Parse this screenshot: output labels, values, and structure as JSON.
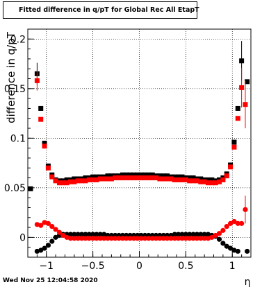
{
  "title": "Fitted difference in q/pT for Global Rec All EtapT",
  "timestamp": "Wed Nov 25 12:04:58 2020",
  "chart_data": {
    "type": "scatter",
    "title": "Fitted difference in q/pT for Global Rec All EtapT",
    "xlabel": "η",
    "ylabel": "difference in q/pT",
    "xlim": [
      -1.2,
      1.2
    ],
    "ylim": [
      -0.02,
      0.21
    ],
    "grid": true,
    "x_ticks": [
      {
        "v": -1,
        "label": "−1"
      },
      {
        "v": -0.5,
        "label": "−0.5"
      },
      {
        "v": 0,
        "label": "0"
      },
      {
        "v": 0.5,
        "label": "0.5"
      },
      {
        "v": 1,
        "label": "1"
      }
    ],
    "y_ticks": [
      {
        "v": 0,
        "label": "0"
      },
      {
        "v": 0.05,
        "label": "0.05"
      },
      {
        "v": 0.1,
        "label": "0.1"
      },
      {
        "v": 0.15,
        "label": "0.15"
      },
      {
        "v": 0.2,
        "label": "0.2"
      }
    ],
    "series": [
      {
        "color": "#000000",
        "points": [
          {
            "x": -1.17,
            "y": 0.049
          },
          {
            "x": -1.1,
            "y": 0.165,
            "err": 0.011
          },
          {
            "x": -1.06,
            "y": 0.13
          },
          {
            "x": -1.02,
            "y": 0.095
          },
          {
            "x": -0.98,
            "y": 0.072
          },
          {
            "x": -0.94,
            "y": 0.063
          },
          {
            "x": -0.9,
            "y": 0.058
          },
          {
            "x": -0.86,
            "y": 0.057
          },
          {
            "x": -0.82,
            "y": 0.057
          },
          {
            "x": -0.78,
            "y": 0.058
          },
          {
            "x": -0.74,
            "y": 0.058
          },
          {
            "x": -0.7,
            "y": 0.059
          },
          {
            "x": -0.66,
            "y": 0.059
          },
          {
            "x": -0.62,
            "y": 0.059
          },
          {
            "x": -0.58,
            "y": 0.06
          },
          {
            "x": -0.54,
            "y": 0.06
          },
          {
            "x": -0.5,
            "y": 0.061
          },
          {
            "x": -0.46,
            "y": 0.061
          },
          {
            "x": -0.42,
            "y": 0.061
          },
          {
            "x": -0.38,
            "y": 0.061
          },
          {
            "x": -0.34,
            "y": 0.062
          },
          {
            "x": -0.3,
            "y": 0.062
          },
          {
            "x": -0.26,
            "y": 0.062
          },
          {
            "x": -0.22,
            "y": 0.062
          },
          {
            "x": -0.18,
            "y": 0.063
          },
          {
            "x": -0.14,
            "y": 0.063
          },
          {
            "x": -0.1,
            "y": 0.063
          },
          {
            "x": -0.06,
            "y": 0.063
          },
          {
            "x": -0.02,
            "y": 0.063
          },
          {
            "x": 0.02,
            "y": 0.063
          },
          {
            "x": 0.06,
            "y": 0.063
          },
          {
            "x": 0.1,
            "y": 0.063
          },
          {
            "x": 0.14,
            "y": 0.063
          },
          {
            "x": 0.18,
            "y": 0.062
          },
          {
            "x": 0.22,
            "y": 0.062
          },
          {
            "x": 0.26,
            "y": 0.062
          },
          {
            "x": 0.3,
            "y": 0.062
          },
          {
            "x": 0.34,
            "y": 0.061
          },
          {
            "x": 0.38,
            "y": 0.061
          },
          {
            "x": 0.42,
            "y": 0.061
          },
          {
            "x": 0.46,
            "y": 0.061
          },
          {
            "x": 0.5,
            "y": 0.06
          },
          {
            "x": 0.54,
            "y": 0.06
          },
          {
            "x": 0.58,
            "y": 0.06
          },
          {
            "x": 0.62,
            "y": 0.059
          },
          {
            "x": 0.66,
            "y": 0.059
          },
          {
            "x": 0.7,
            "y": 0.058
          },
          {
            "x": 0.74,
            "y": 0.058
          },
          {
            "x": 0.78,
            "y": 0.058
          },
          {
            "x": 0.82,
            "y": 0.057
          },
          {
            "x": 0.86,
            "y": 0.058
          },
          {
            "x": 0.9,
            "y": 0.06
          },
          {
            "x": 0.94,
            "y": 0.064
          },
          {
            "x": 0.98,
            "y": 0.073
          },
          {
            "x": 1.02,
            "y": 0.096
          },
          {
            "x": 1.06,
            "y": 0.13
          },
          {
            "x": 1.1,
            "y": 0.178,
            "err": 0.02
          },
          {
            "x": 1.16,
            "y": 0.157
          }
        ]
      },
      {
        "color": "#ff0000",
        "points": [
          {
            "x": -1.1,
            "y": 0.158,
            "err": 0.01
          },
          {
            "x": -1.06,
            "y": 0.119
          },
          {
            "x": -1.02,
            "y": 0.092
          },
          {
            "x": -0.98,
            "y": 0.07
          },
          {
            "x": -0.94,
            "y": 0.061
          },
          {
            "x": -0.9,
            "y": 0.057
          },
          {
            "x": -0.86,
            "y": 0.055
          },
          {
            "x": -0.82,
            "y": 0.055
          },
          {
            "x": -0.78,
            "y": 0.055
          },
          {
            "x": -0.74,
            "y": 0.056
          },
          {
            "x": -0.7,
            "y": 0.056
          },
          {
            "x": -0.66,
            "y": 0.057
          },
          {
            "x": -0.62,
            "y": 0.057
          },
          {
            "x": -0.58,
            "y": 0.057
          },
          {
            "x": -0.54,
            "y": 0.058
          },
          {
            "x": -0.5,
            "y": 0.058
          },
          {
            "x": -0.46,
            "y": 0.058
          },
          {
            "x": -0.42,
            "y": 0.059
          },
          {
            "x": -0.38,
            "y": 0.059
          },
          {
            "x": -0.34,
            "y": 0.059
          },
          {
            "x": -0.3,
            "y": 0.059
          },
          {
            "x": -0.26,
            "y": 0.06
          },
          {
            "x": -0.22,
            "y": 0.06
          },
          {
            "x": -0.18,
            "y": 0.06
          },
          {
            "x": -0.14,
            "y": 0.06
          },
          {
            "x": -0.1,
            "y": 0.06
          },
          {
            "x": -0.06,
            "y": 0.06
          },
          {
            "x": -0.02,
            "y": 0.06
          },
          {
            "x": 0.02,
            "y": 0.06
          },
          {
            "x": 0.06,
            "y": 0.06
          },
          {
            "x": 0.1,
            "y": 0.06
          },
          {
            "x": 0.14,
            "y": 0.06
          },
          {
            "x": 0.18,
            "y": 0.06
          },
          {
            "x": 0.22,
            "y": 0.059
          },
          {
            "x": 0.26,
            "y": 0.059
          },
          {
            "x": 0.3,
            "y": 0.059
          },
          {
            "x": 0.34,
            "y": 0.059
          },
          {
            "x": 0.38,
            "y": 0.058
          },
          {
            "x": 0.42,
            "y": 0.058
          },
          {
            "x": 0.46,
            "y": 0.058
          },
          {
            "x": 0.5,
            "y": 0.058
          },
          {
            "x": 0.54,
            "y": 0.057
          },
          {
            "x": 0.58,
            "y": 0.057
          },
          {
            "x": 0.62,
            "y": 0.057
          },
          {
            "x": 0.66,
            "y": 0.056
          },
          {
            "x": 0.7,
            "y": 0.056
          },
          {
            "x": 0.74,
            "y": 0.055
          },
          {
            "x": 0.78,
            "y": 0.055
          },
          {
            "x": 0.82,
            "y": 0.055
          },
          {
            "x": 0.86,
            "y": 0.056
          },
          {
            "x": 0.9,
            "y": 0.058
          },
          {
            "x": 0.94,
            "y": 0.062
          },
          {
            "x": 0.98,
            "y": 0.071
          },
          {
            "x": 1.02,
            "y": 0.091
          },
          {
            "x": 1.06,
            "y": 0.12
          },
          {
            "x": 1.1,
            "y": 0.151,
            "err": 0.02
          },
          {
            "x": 1.14,
            "y": 0.134,
            "err": 0.024
          }
        ]
      },
      {
        "color": "#000000",
        "points": [
          {
            "x": -1.1,
            "y": -0.014
          },
          {
            "x": -1.06,
            "y": -0.013
          },
          {
            "x": -1.02,
            "y": -0.011
          },
          {
            "x": -0.98,
            "y": -0.008
          },
          {
            "x": -0.94,
            "y": -0.004
          },
          {
            "x": -0.9,
            "y": 0.0
          },
          {
            "x": -0.86,
            "y": 0.002
          },
          {
            "x": -0.82,
            "y": 0.003
          },
          {
            "x": -0.78,
            "y": 0.003
          },
          {
            "x": -0.74,
            "y": 0.003
          },
          {
            "x": -0.7,
            "y": 0.003
          },
          {
            "x": -0.66,
            "y": 0.003
          },
          {
            "x": -0.62,
            "y": 0.003
          },
          {
            "x": -0.58,
            "y": 0.003
          },
          {
            "x": -0.54,
            "y": 0.003
          },
          {
            "x": -0.5,
            "y": 0.003
          },
          {
            "x": -0.46,
            "y": 0.003
          },
          {
            "x": -0.42,
            "y": 0.003
          },
          {
            "x": -0.38,
            "y": 0.003
          },
          {
            "x": -0.34,
            "y": 0.002
          },
          {
            "x": -0.3,
            "y": 0.002
          },
          {
            "x": -0.26,
            "y": 0.002
          },
          {
            "x": -0.22,
            "y": 0.002
          },
          {
            "x": -0.18,
            "y": 0.002
          },
          {
            "x": -0.14,
            "y": 0.002
          },
          {
            "x": -0.1,
            "y": 0.002
          },
          {
            "x": -0.06,
            "y": 0.002
          },
          {
            "x": -0.02,
            "y": 0.002
          },
          {
            "x": 0.02,
            "y": 0.002
          },
          {
            "x": 0.06,
            "y": 0.002
          },
          {
            "x": 0.1,
            "y": 0.002
          },
          {
            "x": 0.14,
            "y": 0.002
          },
          {
            "x": 0.18,
            "y": 0.002
          },
          {
            "x": 0.22,
            "y": 0.002
          },
          {
            "x": 0.26,
            "y": 0.002
          },
          {
            "x": 0.3,
            "y": 0.002
          },
          {
            "x": 0.34,
            "y": 0.002
          },
          {
            "x": 0.38,
            "y": 0.003
          },
          {
            "x": 0.42,
            "y": 0.003
          },
          {
            "x": 0.46,
            "y": 0.003
          },
          {
            "x": 0.5,
            "y": 0.003
          },
          {
            "x": 0.54,
            "y": 0.003
          },
          {
            "x": 0.58,
            "y": 0.003
          },
          {
            "x": 0.62,
            "y": 0.003
          },
          {
            "x": 0.66,
            "y": 0.003
          },
          {
            "x": 0.7,
            "y": 0.003
          },
          {
            "x": 0.74,
            "y": 0.003
          },
          {
            "x": 0.78,
            "y": 0.002
          },
          {
            "x": 0.82,
            "y": 0.001
          },
          {
            "x": 0.86,
            "y": -0.002
          },
          {
            "x": 0.9,
            "y": -0.006
          },
          {
            "x": 0.94,
            "y": -0.009
          },
          {
            "x": 0.98,
            "y": -0.011
          },
          {
            "x": 1.02,
            "y": -0.013
          },
          {
            "x": 1.06,
            "y": -0.014
          },
          {
            "x": 1.16,
            "y": -0.014
          }
        ]
      },
      {
        "color": "#ff0000",
        "points": [
          {
            "x": -1.1,
            "y": 0.013
          },
          {
            "x": -1.06,
            "y": 0.012
          },
          {
            "x": -1.02,
            "y": 0.015
          },
          {
            "x": -0.98,
            "y": 0.014
          },
          {
            "x": -0.94,
            "y": 0.011
          },
          {
            "x": -0.9,
            "y": 0.008
          },
          {
            "x": -0.86,
            "y": 0.005
          },
          {
            "x": -0.82,
            "y": 0.002
          },
          {
            "x": -0.78,
            "y": 0.0
          },
          {
            "x": -0.74,
            "y": -0.001
          },
          {
            "x": -0.7,
            "y": -0.001
          },
          {
            "x": -0.66,
            "y": -0.001
          },
          {
            "x": -0.62,
            "y": -0.001
          },
          {
            "x": -0.58,
            "y": -0.001
          },
          {
            "x": -0.54,
            "y": -0.001
          },
          {
            "x": -0.5,
            "y": -0.001
          },
          {
            "x": -0.46,
            "y": -0.001
          },
          {
            "x": -0.42,
            "y": -0.001
          },
          {
            "x": -0.38,
            "y": -0.001
          },
          {
            "x": -0.34,
            "y": -0.001
          },
          {
            "x": -0.3,
            "y": -0.001
          },
          {
            "x": -0.26,
            "y": -0.001
          },
          {
            "x": -0.22,
            "y": -0.001
          },
          {
            "x": -0.18,
            "y": -0.001
          },
          {
            "x": -0.14,
            "y": -0.001
          },
          {
            "x": -0.1,
            "y": -0.001
          },
          {
            "x": -0.06,
            "y": -0.001
          },
          {
            "x": -0.02,
            "y": -0.001
          },
          {
            "x": 0.02,
            "y": -0.001
          },
          {
            "x": 0.06,
            "y": -0.001
          },
          {
            "x": 0.1,
            "y": -0.001
          },
          {
            "x": 0.14,
            "y": -0.001
          },
          {
            "x": 0.18,
            "y": -0.001
          },
          {
            "x": 0.22,
            "y": -0.001
          },
          {
            "x": 0.26,
            "y": -0.001
          },
          {
            "x": 0.3,
            "y": -0.001
          },
          {
            "x": 0.34,
            "y": -0.001
          },
          {
            "x": 0.38,
            "y": -0.001
          },
          {
            "x": 0.42,
            "y": -0.001
          },
          {
            "x": 0.46,
            "y": -0.001
          },
          {
            "x": 0.5,
            "y": -0.001
          },
          {
            "x": 0.54,
            "y": -0.001
          },
          {
            "x": 0.58,
            "y": -0.001
          },
          {
            "x": 0.62,
            "y": -0.001
          },
          {
            "x": 0.66,
            "y": -0.001
          },
          {
            "x": 0.7,
            "y": -0.001
          },
          {
            "x": 0.74,
            "y": -0.001
          },
          {
            "x": 0.78,
            "y": 0.0
          },
          {
            "x": 0.82,
            "y": 0.002
          },
          {
            "x": 0.86,
            "y": 0.004
          },
          {
            "x": 0.9,
            "y": 0.007
          },
          {
            "x": 0.94,
            "y": 0.011
          },
          {
            "x": 0.98,
            "y": 0.014
          },
          {
            "x": 1.02,
            "y": 0.016
          },
          {
            "x": 1.06,
            "y": 0.014
          },
          {
            "x": 1.1,
            "y": 0.014
          },
          {
            "x": 1.14,
            "y": 0.028,
            "err": 0.014
          }
        ]
      }
    ]
  }
}
